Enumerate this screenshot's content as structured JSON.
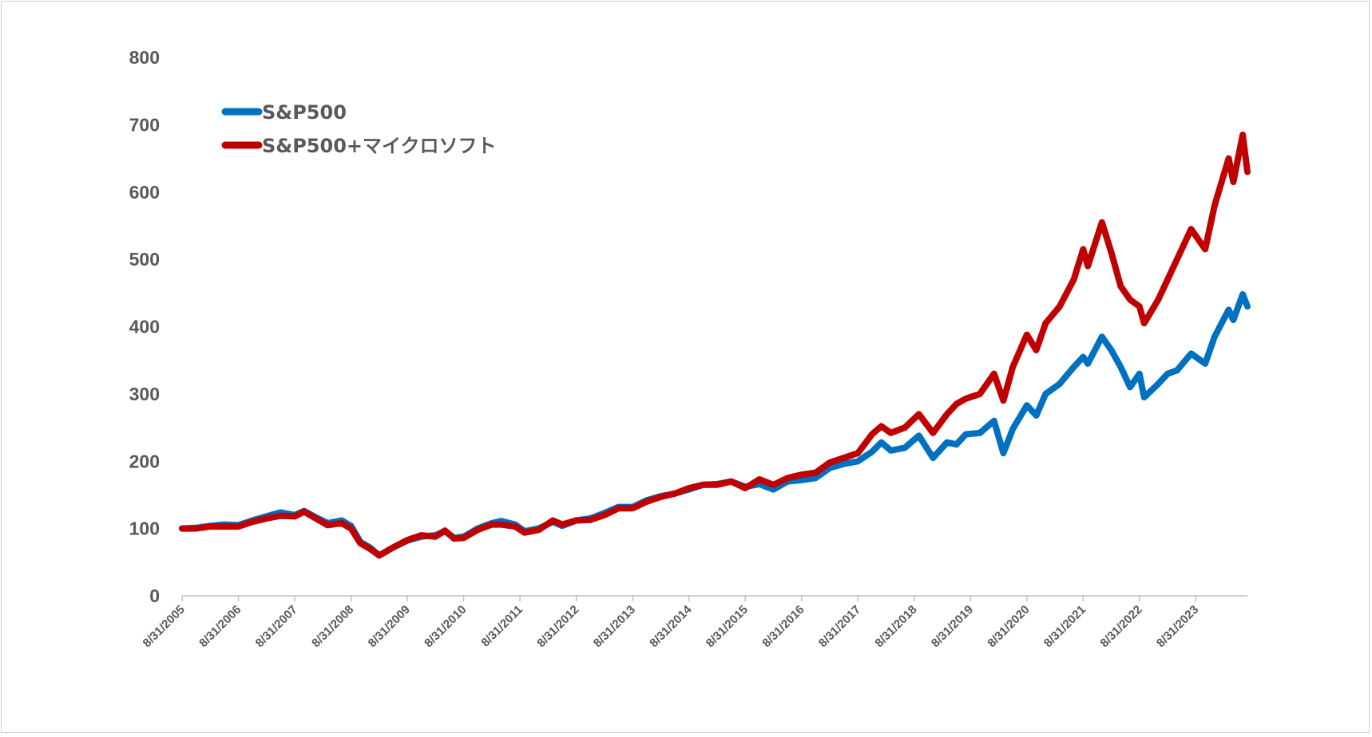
{
  "chart_data": {
    "type": "line",
    "title": "",
    "xlabel": "",
    "ylabel": "",
    "ylim": [
      0,
      800
    ],
    "y_ticks": [
      "0",
      "100",
      "200",
      "300",
      "400",
      "500",
      "600",
      "700",
      "800"
    ],
    "x_tick_labels": [
      "8/31/2005",
      "8/31/2006",
      "8/31/2007",
      "8/31/2008",
      "8/31/2009",
      "8/31/2010",
      "8/31/2011",
      "8/31/2012",
      "8/31/2013",
      "8/31/2014",
      "8/31/2015",
      "8/31/2016",
      "8/31/2017",
      "8/31/2018",
      "8/31/2019",
      "8/31/2020",
      "8/31/2021",
      "8/31/2022",
      "8/31/2023"
    ],
    "x_range": [
      "2005-08",
      "2024-07"
    ],
    "grid": false,
    "legend_position": "top-left",
    "series": [
      {
        "name": "S&P500",
        "color": "#0070C0",
        "points": [
          [
            "2005-08",
            100
          ],
          [
            "2005-11",
            101
          ],
          [
            "2006-02",
            104
          ],
          [
            "2006-05",
            106
          ],
          [
            "2006-08",
            105
          ],
          [
            "2006-11",
            112
          ],
          [
            "2007-02",
            118
          ],
          [
            "2007-05",
            124
          ],
          [
            "2007-08",
            120
          ],
          [
            "2007-10",
            126
          ],
          [
            "2008-01",
            115
          ],
          [
            "2008-03",
            108
          ],
          [
            "2008-06",
            112
          ],
          [
            "2008-08",
            104
          ],
          [
            "2008-10",
            80
          ],
          [
            "2008-12",
            72
          ],
          [
            "2009-02",
            60
          ],
          [
            "2009-05",
            72
          ],
          [
            "2009-08",
            82
          ],
          [
            "2009-11",
            88
          ],
          [
            "2010-02",
            90
          ],
          [
            "2010-04",
            96
          ],
          [
            "2010-06",
            86
          ],
          [
            "2010-08",
            88
          ],
          [
            "2010-11",
            100
          ],
          [
            "2011-02",
            108
          ],
          [
            "2011-04",
            111
          ],
          [
            "2011-07",
            106
          ],
          [
            "2011-09",
            96
          ],
          [
            "2011-12",
            100
          ],
          [
            "2012-03",
            110
          ],
          [
            "2012-05",
            104
          ],
          [
            "2012-08",
            112
          ],
          [
            "2012-11",
            115
          ],
          [
            "2013-02",
            123
          ],
          [
            "2013-05",
            132
          ],
          [
            "2013-08",
            132
          ],
          [
            "2013-11",
            142
          ],
          [
            "2014-02",
            148
          ],
          [
            "2014-05",
            152
          ],
          [
            "2014-08",
            158
          ],
          [
            "2014-11",
            165
          ],
          [
            "2015-02",
            166
          ],
          [
            "2015-05",
            170
          ],
          [
            "2015-08",
            162
          ],
          [
            "2015-11",
            166
          ],
          [
            "2016-02",
            158
          ],
          [
            "2016-05",
            170
          ],
          [
            "2016-08",
            172
          ],
          [
            "2016-11",
            175
          ],
          [
            "2017-02",
            190
          ],
          [
            "2017-05",
            196
          ],
          [
            "2017-08",
            200
          ],
          [
            "2017-11",
            214
          ],
          [
            "2018-01",
            228
          ],
          [
            "2018-03",
            216
          ],
          [
            "2018-06",
            220
          ],
          [
            "2018-09",
            238
          ],
          [
            "2018-12",
            205
          ],
          [
            "2019-03",
            228
          ],
          [
            "2019-05",
            225
          ],
          [
            "2019-07",
            240
          ],
          [
            "2019-10",
            242
          ],
          [
            "2020-01",
            260
          ],
          [
            "2020-03",
            212
          ],
          [
            "2020-05",
            248
          ],
          [
            "2020-08",
            283
          ],
          [
            "2020-10",
            268
          ],
          [
            "2020-12",
            300
          ],
          [
            "2021-03",
            315
          ],
          [
            "2021-06",
            340
          ],
          [
            "2021-08",
            355
          ],
          [
            "2021-09",
            345
          ],
          [
            "2021-12",
            385
          ],
          [
            "2022-02",
            365
          ],
          [
            "2022-04",
            340
          ],
          [
            "2022-06",
            310
          ],
          [
            "2022-08",
            330
          ],
          [
            "2022-09",
            295
          ],
          [
            "2022-12",
            315
          ],
          [
            "2023-02",
            330
          ],
          [
            "2023-04",
            335
          ],
          [
            "2023-07",
            360
          ],
          [
            "2023-10",
            345
          ],
          [
            "2023-12",
            385
          ],
          [
            "2024-03",
            425
          ],
          [
            "2024-04",
            410
          ],
          [
            "2024-06",
            448
          ],
          [
            "2024-07",
            430
          ]
        ]
      },
      {
        "name": "S&P500+マイクロソフト",
        "color": "#C00000",
        "points": [
          [
            "2005-08",
            100
          ],
          [
            "2005-11",
            100
          ],
          [
            "2006-02",
            103
          ],
          [
            "2006-05",
            103
          ],
          [
            "2006-08",
            103
          ],
          [
            "2006-11",
            110
          ],
          [
            "2007-02",
            115
          ],
          [
            "2007-05",
            119
          ],
          [
            "2007-08",
            118
          ],
          [
            "2007-10",
            125
          ],
          [
            "2008-01",
            113
          ],
          [
            "2008-03",
            105
          ],
          [
            "2008-06",
            108
          ],
          [
            "2008-08",
            100
          ],
          [
            "2008-10",
            78
          ],
          [
            "2008-12",
            70
          ],
          [
            "2009-02",
            60
          ],
          [
            "2009-05",
            72
          ],
          [
            "2009-08",
            83
          ],
          [
            "2009-11",
            90
          ],
          [
            "2010-02",
            88
          ],
          [
            "2010-04",
            97
          ],
          [
            "2010-06",
            85
          ],
          [
            "2010-08",
            86
          ],
          [
            "2010-11",
            98
          ],
          [
            "2011-02",
            106
          ],
          [
            "2011-04",
            106
          ],
          [
            "2011-07",
            103
          ],
          [
            "2011-09",
            94
          ],
          [
            "2011-12",
            98
          ],
          [
            "2012-03",
            112
          ],
          [
            "2012-05",
            106
          ],
          [
            "2012-08",
            112
          ],
          [
            "2012-11",
            113
          ],
          [
            "2013-02",
            120
          ],
          [
            "2013-05",
            130
          ],
          [
            "2013-08",
            130
          ],
          [
            "2013-11",
            140
          ],
          [
            "2014-02",
            147
          ],
          [
            "2014-05",
            152
          ],
          [
            "2014-08",
            160
          ],
          [
            "2014-11",
            165
          ],
          [
            "2015-02",
            165
          ],
          [
            "2015-05",
            170
          ],
          [
            "2015-08",
            160
          ],
          [
            "2015-11",
            173
          ],
          [
            "2016-02",
            165
          ],
          [
            "2016-05",
            175
          ],
          [
            "2016-08",
            180
          ],
          [
            "2016-11",
            183
          ],
          [
            "2017-02",
            198
          ],
          [
            "2017-05",
            205
          ],
          [
            "2017-08",
            212
          ],
          [
            "2017-11",
            240
          ],
          [
            "2018-01",
            252
          ],
          [
            "2018-03",
            242
          ],
          [
            "2018-06",
            250
          ],
          [
            "2018-09",
            270
          ],
          [
            "2018-12",
            242
          ],
          [
            "2019-03",
            270
          ],
          [
            "2019-05",
            285
          ],
          [
            "2019-07",
            293
          ],
          [
            "2019-10",
            300
          ],
          [
            "2020-01",
            330
          ],
          [
            "2020-03",
            290
          ],
          [
            "2020-05",
            340
          ],
          [
            "2020-08",
            388
          ],
          [
            "2020-10",
            365
          ],
          [
            "2020-12",
            405
          ],
          [
            "2021-03",
            430
          ],
          [
            "2021-06",
            470
          ],
          [
            "2021-08",
            515
          ],
          [
            "2021-09",
            490
          ],
          [
            "2021-12",
            555
          ],
          [
            "2022-02",
            510
          ],
          [
            "2022-04",
            460
          ],
          [
            "2022-06",
            440
          ],
          [
            "2022-08",
            430
          ],
          [
            "2022-09",
            405
          ],
          [
            "2022-12",
            440
          ],
          [
            "2023-02",
            470
          ],
          [
            "2023-04",
            500
          ],
          [
            "2023-07",
            545
          ],
          [
            "2023-10",
            515
          ],
          [
            "2023-12",
            580
          ],
          [
            "2024-03",
            650
          ],
          [
            "2024-04",
            615
          ],
          [
            "2024-06",
            685
          ],
          [
            "2024-07",
            630
          ]
        ]
      }
    ]
  }
}
